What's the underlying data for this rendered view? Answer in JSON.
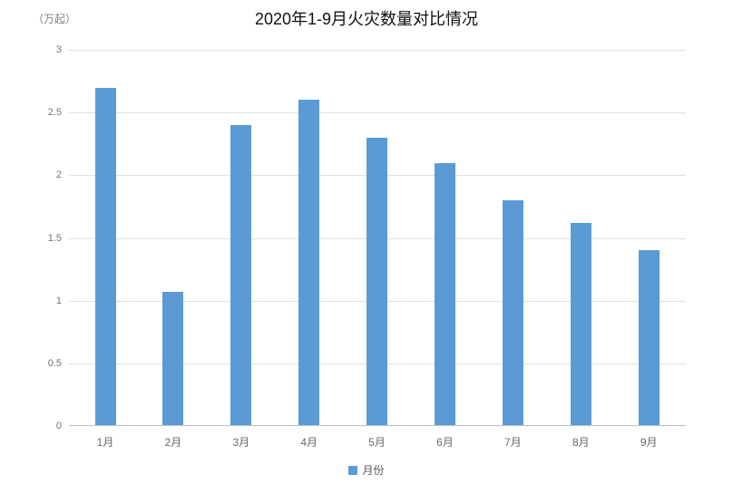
{
  "title": "2020年1-9月火灾数量对比情况",
  "y_axis_unit": "（万起）",
  "legend": {
    "label": "月份"
  },
  "colors": {
    "bar": "#5b9bd5",
    "gridline": "#e0e0e0",
    "axis_line": "#bfbfbf",
    "tick_text": "#737373",
    "title_text": "#111111"
  },
  "chart_data": {
    "type": "bar",
    "categories": [
      "1月",
      "2月",
      "3月",
      "4月",
      "5月",
      "6月",
      "7月",
      "8月",
      "9月"
    ],
    "values": [
      2.7,
      1.07,
      2.4,
      2.6,
      2.3,
      2.1,
      1.8,
      1.62,
      1.4
    ],
    "title": "2020年1-9月火灾数量对比情况",
    "xlabel": "",
    "ylabel": "（万起）",
    "ylim": [
      0,
      3
    ],
    "yticks": [
      0,
      0.5,
      1,
      1.5,
      2,
      2.5,
      3
    ],
    "grid": true,
    "legend": [
      "月份"
    ],
    "legend_position": "bottom",
    "bar_color": "#5b9bd5"
  }
}
